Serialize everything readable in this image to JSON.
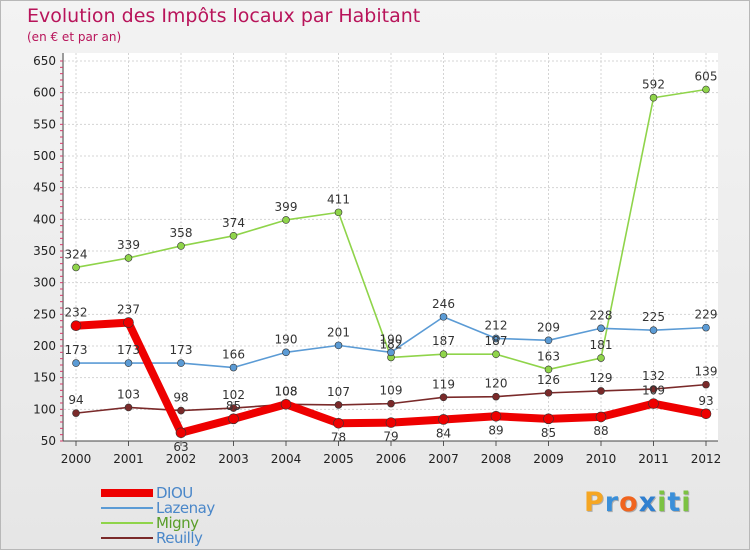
{
  "header": {
    "title": "Evolution des Impôts locaux par Habitant",
    "subtitle": "(en € et par an)"
  },
  "brand": {
    "letters": [
      "P",
      "r",
      "o",
      "x",
      "i",
      "t",
      "i"
    ],
    "colors": [
      "#f5a623",
      "#3a8fd9",
      "#f0641e",
      "#2f7fd0",
      "#7cc242",
      "#3a8fd9",
      "#7cc242"
    ]
  },
  "chart_data": {
    "type": "line",
    "x": [
      "2000",
      "2001",
      "2002",
      "2003",
      "2004",
      "2005",
      "2006",
      "2007",
      "2008",
      "2009",
      "2010",
      "2011",
      "2012"
    ],
    "ylim": [
      50,
      650
    ],
    "yticks": [
      50,
      100,
      150,
      200,
      250,
      300,
      350,
      400,
      450,
      500,
      550,
      600,
      650
    ],
    "grid": true,
    "legend": "bottom-left",
    "series": [
      {
        "name": "DIOU",
        "color": "#ee0000",
        "values": [
          232,
          237,
          63,
          85,
          108,
          78,
          79,
          84,
          89,
          85,
          88,
          109,
          93
        ]
      },
      {
        "name": "Lazenay",
        "color": "#5b9bd5",
        "values": [
          173,
          173,
          173,
          166,
          190,
          201,
          190,
          246,
          212,
          209,
          228,
          225,
          229
        ]
      },
      {
        "name": "Migny",
        "color": "#8fd44a",
        "values": [
          324,
          339,
          358,
          374,
          399,
          411,
          182,
          187,
          187,
          163,
          181,
          592,
          605
        ]
      },
      {
        "name": "Reuilly",
        "color": "#7a2a2a",
        "values": [
          94,
          103,
          98,
          102,
          108,
          107,
          109,
          119,
          120,
          126,
          129,
          132,
          139
        ]
      }
    ]
  }
}
